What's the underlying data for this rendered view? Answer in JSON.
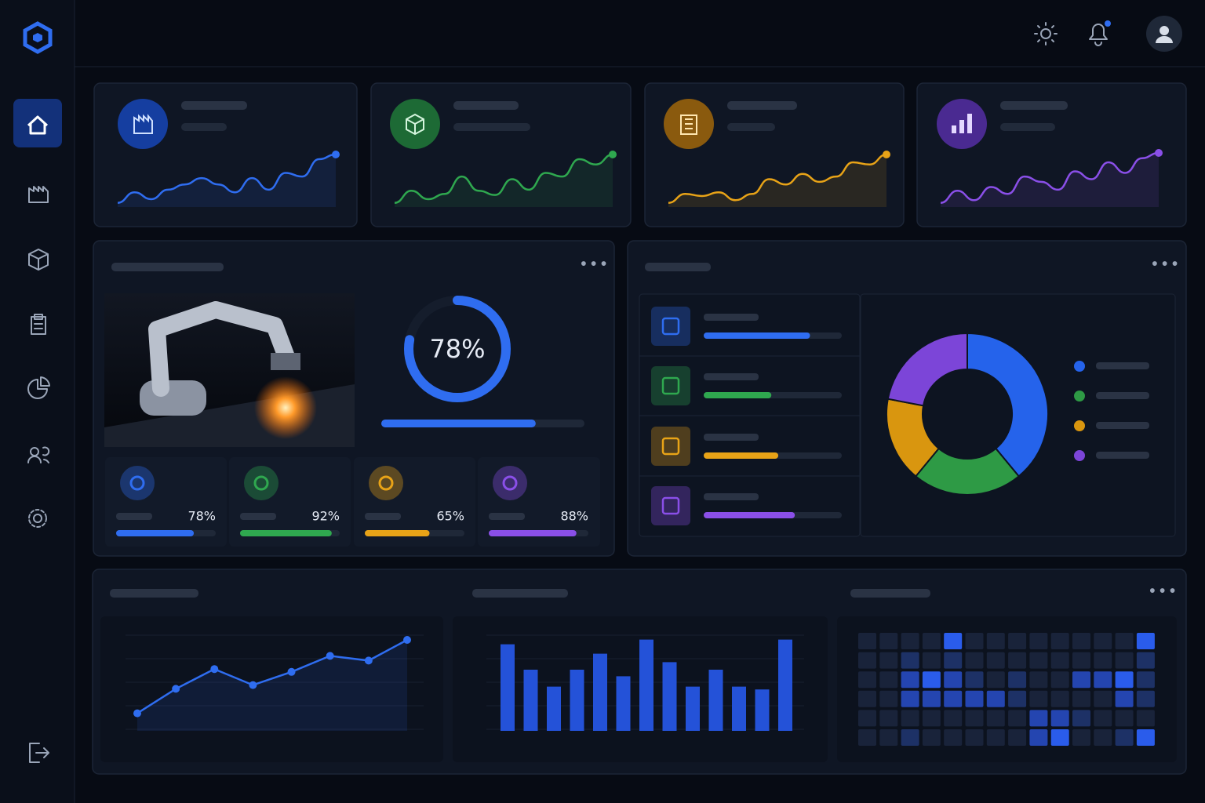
{
  "gauge": {
    "label": "78%",
    "value": 78,
    "color": "#2f6df0"
  },
  "gauge_progress": {
    "value": 76,
    "color": "#2f6df0"
  },
  "sparklines": [
    {
      "color": "#2f6df0",
      "values": [
        5,
        25,
        12,
        30,
        40,
        52,
        40,
        25,
        52,
        30,
        62,
        55,
        88,
        97
      ]
    },
    {
      "color": "#2fa84f",
      "values": [
        5,
        28,
        12,
        22,
        55,
        28,
        20,
        50,
        30,
        62,
        55,
        88,
        78,
        97
      ]
    },
    {
      "color": "#e8a317",
      "values": [
        5,
        22,
        18,
        25,
        10,
        22,
        50,
        40,
        60,
        45,
        55,
        82,
        78,
        97
      ]
    },
    {
      "color": "#8a4fe8",
      "values": [
        5,
        28,
        10,
        35,
        22,
        55,
        45,
        30,
        65,
        50,
        82,
        62,
        90,
        100
      ]
    }
  ],
  "kpis": [
    {
      "label": "78%",
      "value": 78,
      "color": "#2f6df0"
    },
    {
      "label": "92%",
      "value": 92,
      "color": "#2fa84f"
    },
    {
      "label": "65%",
      "value": 65,
      "color": "#e8a317"
    },
    {
      "label": "88%",
      "value": 88,
      "color": "#8a4fe8"
    }
  ],
  "list_progress": [
    {
      "value": 77,
      "color": "#2f6df0"
    },
    {
      "value": 49,
      "color": "#2fa84f"
    },
    {
      "value": 54,
      "color": "#e8a317"
    },
    {
      "value": 66,
      "color": "#8a4fe8"
    }
  ],
  "donut": {
    "values": [
      39,
      22,
      17,
      22
    ],
    "colors": [
      "#2563eb",
      "#2e9a45",
      "#d9960f",
      "#7c45d8"
    ]
  },
  "line_chart": {
    "color": "#2f6df0",
    "values": [
      17,
      43,
      64,
      47,
      61,
      78,
      73,
      95
    ]
  },
  "bar_chart": {
    "color": "#2452d8",
    "values": [
      92,
      65,
      47,
      65,
      82,
      58,
      97,
      73,
      47,
      65,
      47,
      44,
      97
    ]
  },
  "heatmap": {
    "colors": [
      "#19233a",
      "#1d3166",
      "#2445b0",
      "#2a5ceb"
    ],
    "rows": [
      [
        0,
        0,
        0,
        0,
        3,
        0,
        0,
        0,
        0,
        0,
        0,
        0,
        0,
        3
      ],
      [
        0,
        0,
        1,
        0,
        1,
        0,
        0,
        0,
        0,
        0,
        0,
        0,
        0,
        1
      ],
      [
        0,
        0,
        2,
        3,
        2,
        1,
        0,
        1,
        0,
        0,
        2,
        2,
        3,
        1
      ],
      [
        0,
        0,
        2,
        2,
        2,
        2,
        2,
        1,
        0,
        0,
        0,
        0,
        2,
        1
      ],
      [
        0,
        0,
        0,
        0,
        0,
        0,
        0,
        0,
        2,
        2,
        1,
        0,
        0,
        0
      ],
      [
        0,
        0,
        1,
        0,
        0,
        0,
        0,
        0,
        2,
        3,
        0,
        0,
        1,
        3
      ]
    ]
  }
}
